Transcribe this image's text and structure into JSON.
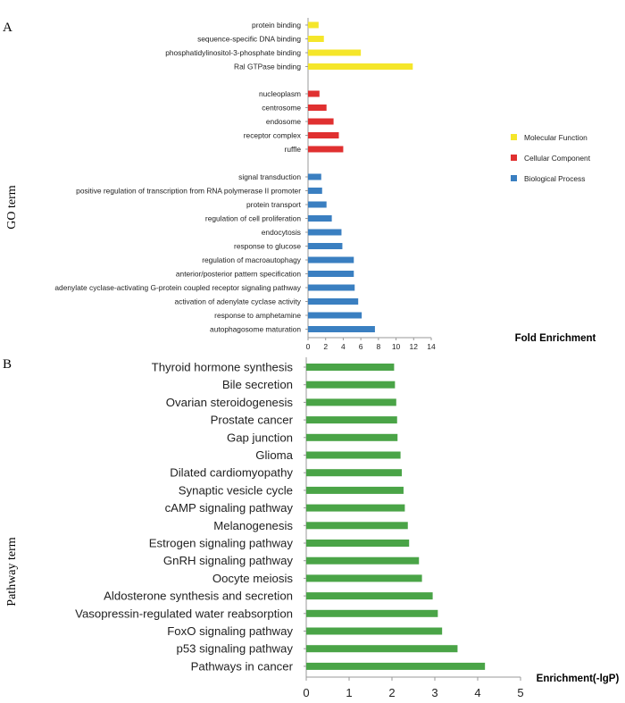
{
  "chart_data": [
    {
      "type": "bar",
      "orientation": "horizontal",
      "panel_label": "A",
      "ylabel": "GO term",
      "xlabel": "Fold Enrichment",
      "xlim": [
        0,
        14
      ],
      "xticks": [
        "0",
        "2",
        "4",
        "6",
        "8",
        "10",
        "12",
        "14"
      ],
      "legend": [
        {
          "name": "Molecular Function",
          "color": "#f5e62a"
        },
        {
          "name": "Cellular Component",
          "color": "#e03030"
        },
        {
          "name": "Biological  Process",
          "color": "#3a7fc1"
        }
      ],
      "series": [
        {
          "name": "Molecular Function",
          "color": "#f5e62a",
          "categories": [
            "protein binding",
            "sequence-specific DNA binding",
            "phosphatidylinositol-3-phosphate binding",
            "Ral GTPase binding"
          ],
          "values": [
            1.2,
            1.8,
            6.0,
            11.9
          ]
        },
        {
          "name": "Cellular Component",
          "color": "#e03030",
          "categories": [
            "nucleoplasm",
            "centrosome",
            "endosome",
            "receptor complex",
            "ruffle"
          ],
          "values": [
            1.3,
            2.1,
            2.9,
            3.5,
            4.0
          ]
        },
        {
          "name": "Biological  Process",
          "color": "#3a7fc1",
          "categories": [
            "signal transduction",
            "positive regulation of transcription from RNA polymerase II promoter",
            "protein transport",
            "regulation of cell proliferation",
            "endocytosis",
            "response to glucose",
            "regulation of macroautophagy",
            "anterior/posterior pattern specification",
            "adenylate cyclase-activating G-protein coupled receptor signaling pathway",
            "activation of adenylate cyclase activity",
            "response to amphetamine",
            "autophagosome maturation"
          ],
          "values": [
            1.5,
            1.6,
            2.1,
            2.7,
            3.8,
            3.9,
            5.2,
            5.2,
            5.3,
            5.7,
            6.1,
            7.6
          ]
        }
      ]
    },
    {
      "type": "bar",
      "orientation": "horizontal",
      "panel_label": "B",
      "ylabel": "Pathway term",
      "xlabel": "Enrichment(-lgP)",
      "xlim": [
        0,
        5
      ],
      "xticks": [
        "0",
        "1",
        "2",
        "3",
        "4",
        "5"
      ],
      "color": "#4aa447",
      "categories": [
        "Thyroid hormone synthesis",
        "Bile secretion",
        "Ovarian steroidogenesis",
        "Prostate cancer",
        "Gap junction",
        "Glioma",
        "Dilated cardiomyopathy",
        "Synaptic vesicle cycle",
        "cAMP signaling pathway",
        "Melanogenesis",
        "Estrogen signaling pathway",
        "GnRH signaling pathway",
        "Oocyte meiosis",
        "Aldosterone synthesis and secretion",
        "Vasopressin-regulated water reabsorption",
        "FoxO signaling pathway",
        "p53 signaling pathway",
        "Pathways in cancer"
      ],
      "values": [
        2.05,
        2.07,
        2.1,
        2.12,
        2.13,
        2.2,
        2.23,
        2.27,
        2.3,
        2.37,
        2.4,
        2.63,
        2.7,
        2.95,
        3.07,
        3.17,
        3.53,
        4.17
      ]
    }
  ]
}
